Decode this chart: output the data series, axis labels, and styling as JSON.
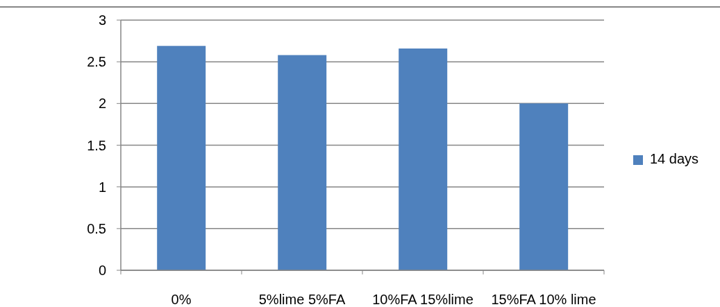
{
  "chart_data": {
    "type": "bar",
    "categories": [
      "0%",
      "5%lime 5%FA",
      "10%FA 15%lime",
      "15%FA 10% lime"
    ],
    "series": [
      {
        "name": "14 days",
        "color": "#4f81bd",
        "values": [
          2.69,
          2.58,
          2.66,
          2.0
        ]
      }
    ],
    "ylim": [
      0,
      3
    ],
    "yticks": [
      0,
      0.5,
      1,
      1.5,
      2,
      2.5,
      3
    ],
    "grid": "y",
    "legend": "right"
  }
}
